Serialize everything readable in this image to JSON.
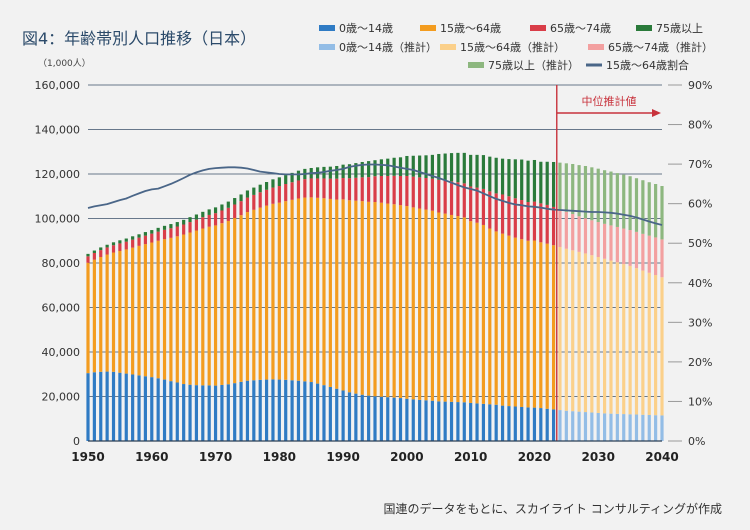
{
  "chart_data": {
    "type": "bar",
    "stacked": true,
    "title": "図4：年齢帯別人口推移（日本）",
    "y_unit_label": "（1,000人）",
    "ylim": [
      0,
      160000
    ],
    "y_ticks": [
      0,
      20000,
      40000,
      60000,
      80000,
      100000,
      120000,
      140000,
      160000
    ],
    "y_tick_labels": [
      "0",
      "20,000",
      "40,000",
      "60,000",
      "80,000",
      "100,000",
      "120,000",
      "140,000",
      "160,000"
    ],
    "y2lim": [
      0,
      90
    ],
    "y2_ticks": [
      0,
      10,
      20,
      30,
      40,
      50,
      60,
      70,
      80,
      90
    ],
    "y2_tick_labels": [
      "0%",
      "10%",
      "20%",
      "30%",
      "40%",
      "50%",
      "60%",
      "70%",
      "80%",
      "90%"
    ],
    "xlim": [
      1950,
      2040
    ],
    "x_ticks": [
      1950,
      1960,
      1970,
      1980,
      1990,
      2000,
      2010,
      2020,
      2030,
      2040
    ],
    "x_tick_labels": [
      "1950",
      "1960",
      "1970",
      "1980",
      "1990",
      "2000",
      "2010",
      "2020",
      "2030",
      "2040"
    ],
    "forecast_start": 2023,
    "forecast_label": "中位推計値",
    "grid": true,
    "legend_position": "top-right",
    "legend": [
      {
        "label": "0歳～14歳",
        "color": "#2f7bc4",
        "kind": "bar"
      },
      {
        "label": "15歳～64歳",
        "color": "#f39c1f",
        "kind": "bar"
      },
      {
        "label": "65歳～74歳",
        "color": "#d93d48",
        "kind": "bar"
      },
      {
        "label": "75歳以上",
        "color": "#2a7a3a",
        "kind": "bar"
      },
      {
        "label": "0歳～14歳（推計）",
        "color": "#93bde6",
        "kind": "bar"
      },
      {
        "label": "15歳～64歳（推計）",
        "color": "#fbd08a",
        "kind": "bar"
      },
      {
        "label": "65歳～74歳（推計）",
        "color": "#f3a0a0",
        "kind": "bar"
      },
      {
        "label": "75歳以上（推計）",
        "color": "#8db77f",
        "kind": "bar"
      },
      {
        "label": "15歳～64歳割合",
        "color": "#4a6688",
        "kind": "line"
      }
    ],
    "colors_actual": [
      "#2f7bc4",
      "#f39c1f",
      "#d93d48",
      "#2a7a3a"
    ],
    "colors_forecast": [
      "#93bde6",
      "#fbd08a",
      "#f3a0a0",
      "#8db77f"
    ],
    "line_color": "#4a6688",
    "forecast_line_color": "#c8323c",
    "x": [
      1950,
      1951,
      1952,
      1953,
      1954,
      1955,
      1956,
      1957,
      1958,
      1959,
      1960,
      1961,
      1962,
      1963,
      1964,
      1965,
      1966,
      1967,
      1968,
      1969,
      1970,
      1971,
      1972,
      1973,
      1974,
      1975,
      1976,
      1977,
      1978,
      1979,
      1980,
      1981,
      1982,
      1983,
      1984,
      1985,
      1986,
      1987,
      1988,
      1989,
      1990,
      1991,
      1992,
      1993,
      1994,
      1995,
      1996,
      1997,
      1998,
      1999,
      2000,
      2001,
      2002,
      2003,
      2004,
      2005,
      2006,
      2007,
      2008,
      2009,
      2010,
      2011,
      2012,
      2013,
      2014,
      2015,
      2016,
      2017,
      2018,
      2019,
      2020,
      2021,
      2022,
      2023,
      2024,
      2025,
      2026,
      2027,
      2028,
      2029,
      2030,
      2031,
      2032,
      2033,
      2034,
      2035,
      2036,
      2037,
      2038,
      2039,
      2040
    ],
    "series": [
      {
        "name": "0歳～14歳",
        "values": [
          30500,
          30900,
          31100,
          31200,
          31100,
          30700,
          30300,
          29900,
          29500,
          29100,
          28700,
          28200,
          27600,
          26900,
          26300,
          25600,
          25300,
          25100,
          25000,
          25000,
          24900,
          25200,
          25500,
          26000,
          26600,
          27100,
          27300,
          27500,
          27600,
          27700,
          27600,
          27500,
          27300,
          27100,
          26800,
          26500,
          25800,
          25100,
          24300,
          23500,
          22700,
          21900,
          21300,
          20800,
          20400,
          20100,
          19900,
          19700,
          19500,
          19300,
          19000,
          18700,
          18500,
          18300,
          18100,
          17800,
          17700,
          17600,
          17500,
          17400,
          17100,
          16900,
          16700,
          16500,
          16300,
          15900,
          15700,
          15500,
          15300,
          15100,
          15000,
          14800,
          14500,
          14200,
          13900,
          13600,
          13400,
          13200,
          13000,
          12800,
          12600,
          12400,
          12300,
          12200,
          12100,
          12000,
          11900,
          11800,
          11700,
          11600,
          11500
        ]
      },
      {
        "name": "15歳～64歳",
        "values": [
          49600,
          50600,
          51600,
          52600,
          53600,
          54700,
          55800,
          57000,
          58200,
          59400,
          60500,
          61800,
          63100,
          64400,
          65700,
          67200,
          68400,
          69500,
          70500,
          71300,
          72000,
          72700,
          73400,
          74200,
          74900,
          75800,
          76600,
          77400,
          78200,
          78900,
          79500,
          80300,
          81100,
          81900,
          82600,
          83000,
          83500,
          84000,
          84500,
          85000,
          85900,
          86300,
          86700,
          87000,
          87100,
          87300,
          87200,
          87000,
          86900,
          86700,
          86600,
          86300,
          86000,
          85700,
          85400,
          84900,
          84500,
          84000,
          83600,
          83100,
          81700,
          81200,
          80400,
          79000,
          77900,
          77300,
          76600,
          75900,
          75400,
          74900,
          75100,
          74500,
          74200,
          73800,
          73300,
          72800,
          72300,
          71800,
          71300,
          70700,
          70100,
          69500,
          68800,
          68100,
          67400,
          66700,
          65800,
          64800,
          63900,
          63000,
          62100
        ]
      },
      {
        "name": "65歳～74歳",
        "values": [
          2900,
          3000,
          3100,
          3200,
          3300,
          3400,
          3500,
          3600,
          3700,
          3800,
          4000,
          4100,
          4200,
          4300,
          4400,
          4500,
          4700,
          4900,
          5100,
          5300,
          5500,
          5700,
          5900,
          6100,
          6300,
          6500,
          6700,
          6900,
          7100,
          7300,
          7500,
          7700,
          7900,
          8100,
          8300,
          8500,
          8700,
          8900,
          9100,
          9400,
          9600,
          9900,
          10300,
          10700,
          11100,
          11600,
          12000,
          12400,
          12800,
          13100,
          13500,
          13800,
          14000,
          14200,
          14400,
          14700,
          14900,
          15100,
          15200,
          15300,
          15600,
          15800,
          16200,
          16700,
          17100,
          17600,
          17700,
          17700,
          17600,
          17400,
          17500,
          17500,
          17400,
          17200,
          16900,
          16600,
          16300,
          16000,
          15800,
          15700,
          15700,
          15700,
          15800,
          15900,
          16000,
          16100,
          16300,
          16500,
          16700,
          16900,
          17000
        ]
      },
      {
        "name": "75歳以上",
        "values": [
          1100,
          1100,
          1200,
          1200,
          1300,
          1400,
          1400,
          1500,
          1500,
          1600,
          1600,
          1700,
          1800,
          1900,
          2000,
          2100,
          2200,
          2300,
          2400,
          2500,
          2600,
          2700,
          2800,
          2900,
          3000,
          3200,
          3300,
          3400,
          3500,
          3700,
          3900,
          4000,
          4200,
          4400,
          4600,
          4700,
          5000,
          5200,
          5400,
          5700,
          6000,
          6300,
          6600,
          6900,
          7200,
          7200,
          7500,
          7800,
          8100,
          8400,
          9000,
          9400,
          9800,
          10200,
          10700,
          11600,
          12100,
          12700,
          13200,
          13700,
          14200,
          14700,
          15200,
          15600,
          16000,
          16100,
          16700,
          17500,
          18200,
          18600,
          18700,
          18700,
          19400,
          20200,
          21000,
          21800,
          22500,
          23000,
          23500,
          23800,
          24000,
          24100,
          24200,
          24200,
          24200,
          24200,
          24100,
          24100,
          24000,
          24000,
          24000
        ]
      }
    ],
    "ratio_line": {
      "name": "15歳～64歳割合",
      "values": [
        58.9,
        59.3,
        59.6,
        59.9,
        60.4,
        60.9,
        61.3,
        62.0,
        62.6,
        63.2,
        63.6,
        63.8,
        64.4,
        65.0,
        65.7,
        66.5,
        67.3,
        67.9,
        68.4,
        68.8,
        69.0,
        69.1,
        69.2,
        69.2,
        69.1,
        68.9,
        68.5,
        68.1,
        67.9,
        67.7,
        67.5,
        67.4,
        67.4,
        67.4,
        67.5,
        67.7,
        67.8,
        68.0,
        68.3,
        68.5,
        68.8,
        69.3,
        69.6,
        69.8,
        69.9,
        69.9,
        69.8,
        69.7,
        69.4,
        69.1,
        68.8,
        68.5,
        68.0,
        67.5,
        67.0,
        66.5,
        65.9,
        65.3,
        64.7,
        64.1,
        63.7,
        63.3,
        62.6,
        61.9,
        61.2,
        60.7,
        60.2,
        59.8,
        59.6,
        59.3,
        59.2,
        59.0,
        58.7,
        58.5,
        58.4,
        58.3,
        58.2,
        58.1,
        58.0,
        57.9,
        57.9,
        57.8,
        57.7,
        57.5,
        57.2,
        56.9,
        56.5,
        56.0,
        55.5,
        55.0,
        54.6
      ]
    },
    "source": "国連のデータをもとに、スカイライト コンサルティングが作成"
  }
}
